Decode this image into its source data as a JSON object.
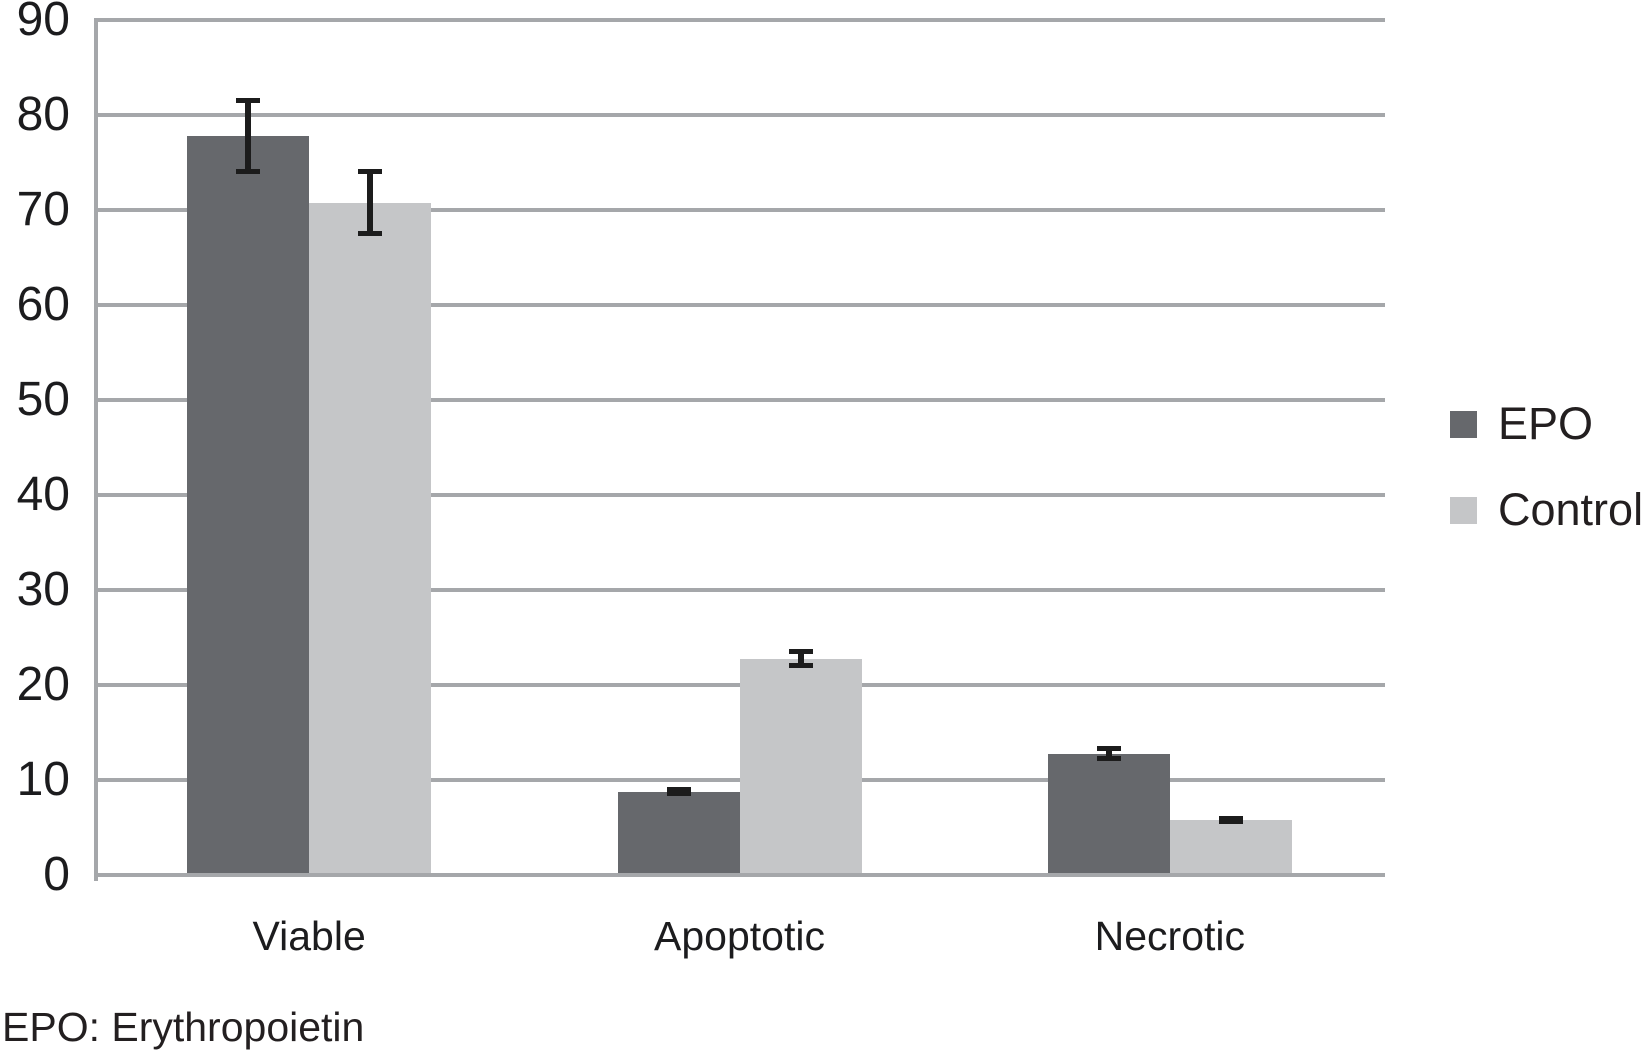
{
  "figure": {
    "footnote": "EPO: Erythropoietin"
  },
  "chart_data": {
    "type": "bar",
    "title": "",
    "xlabel": "",
    "ylabel": "",
    "categories": [
      "Viable",
      "Apoptotic",
      "Necrotic"
    ],
    "series": [
      {
        "name": "EPO",
        "values": [
          78,
          9,
          13
        ],
        "errors": [
          4.0,
          0.5,
          0.8
        ],
        "color": "#66686c"
      },
      {
        "name": "Control",
        "values": [
          71,
          23,
          6
        ],
        "errors": [
          3.5,
          1.0,
          0.4
        ],
        "color": "#c5c6c8"
      }
    ],
    "ylim": [
      0,
      90
    ],
    "yticks": [
      0,
      10,
      20,
      30,
      40,
      50,
      60,
      70,
      80,
      90
    ],
    "grid": true,
    "legend_position": "right"
  },
  "colors": {
    "gridline": "#a5a7aa",
    "axis": "#a5a7aa",
    "error_bar": "#1c1c1c",
    "text": "#1c1c1e",
    "background": "#ffffff"
  }
}
